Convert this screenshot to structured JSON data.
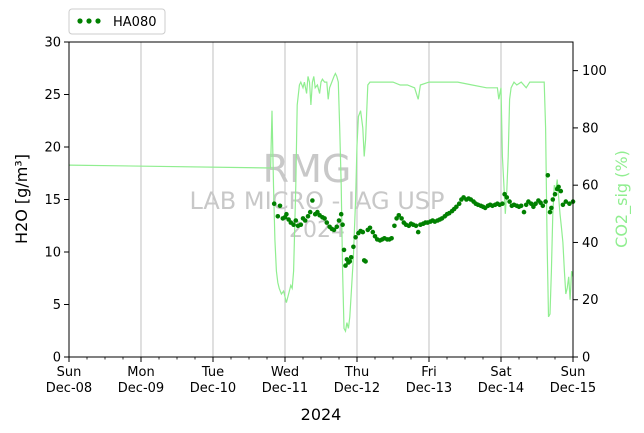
{
  "chart_data": {
    "type": "scatter",
    "title": "",
    "xlabel": "2024",
    "ylabel_left": "H2O [g/m³]",
    "ylabel_right": "CO2_sig (%)",
    "x_range": [
      "2024-12-08",
      "2024-12-15"
    ],
    "ylim_left": [
      0,
      30
    ],
    "ylim_right": [
      0,
      110
    ],
    "left_ticks": [
      0,
      5,
      10,
      15,
      20,
      25,
      30
    ],
    "right_ticks": [
      0,
      20,
      40,
      60,
      80,
      100
    ],
    "x_ticks": [
      {
        "day": 0,
        "line1": "Sun",
        "line2": "Dec-08"
      },
      {
        "day": 1,
        "line1": "Mon",
        "line2": "Dec-09"
      },
      {
        "day": 2,
        "line1": "Tue",
        "line2": "Dec-10"
      },
      {
        "day": 3,
        "line1": "Wed",
        "line2": "Dec-11"
      },
      {
        "day": 4,
        "line1": "Thu",
        "line2": "Dec-12"
      },
      {
        "day": 5,
        "line1": "Fri",
        "line2": "Dec-13"
      },
      {
        "day": 6,
        "line1": "Sat",
        "line2": "Dec-14"
      },
      {
        "day": 7,
        "line1": "Sun",
        "line2": "Dec-15"
      }
    ],
    "grid": "vertical",
    "legend": {
      "placement": "top-left-outside",
      "entries": [
        "HA080"
      ]
    },
    "watermark": [
      "RMG",
      "LAB MICRO - IAG USP",
      "2024"
    ],
    "colors": {
      "h2o": "#008000",
      "co2": "#90ee90",
      "grid": "#b0b0b0",
      "watermark": "#c8c8c8"
    },
    "series": [
      {
        "name": "HA080",
        "axis": "left",
        "style": "markers",
        "x_unit": "days since Dec-08",
        "points": [
          [
            2.85,
            14.6
          ],
          [
            2.9,
            13.4
          ],
          [
            2.93,
            14.4
          ],
          [
            2.97,
            13.2
          ],
          [
            3.0,
            13.3
          ],
          [
            3.02,
            13.6
          ],
          [
            3.05,
            13.1
          ],
          [
            3.08,
            12.8
          ],
          [
            3.12,
            12.6
          ],
          [
            3.15,
            13.0
          ],
          [
            3.18,
            12.5
          ],
          [
            3.22,
            12.6
          ],
          [
            3.25,
            13.2
          ],
          [
            3.28,
            13.0
          ],
          [
            3.32,
            13.4
          ],
          [
            3.35,
            13.8
          ],
          [
            3.38,
            14.9
          ],
          [
            3.42,
            13.6
          ],
          [
            3.45,
            13.8
          ],
          [
            3.48,
            13.5
          ],
          [
            3.52,
            13.3
          ],
          [
            3.55,
            13.2
          ],
          [
            3.58,
            12.8
          ],
          [
            3.62,
            12.4
          ],
          [
            3.65,
            12.2
          ],
          [
            3.68,
            12.1
          ],
          [
            3.72,
            12.4
          ],
          [
            3.75,
            13.0
          ],
          [
            3.78,
            13.6
          ],
          [
            3.8,
            12.6
          ],
          [
            3.82,
            10.2
          ],
          [
            3.84,
            8.7
          ],
          [
            3.86,
            9.3
          ],
          [
            3.88,
            9.0
          ],
          [
            3.9,
            9.1
          ],
          [
            3.92,
            9.5
          ],
          [
            3.95,
            10.5
          ],
          [
            3.98,
            11.4
          ],
          [
            4.02,
            11.8
          ],
          [
            4.05,
            12.0
          ],
          [
            4.08,
            11.9
          ],
          [
            4.1,
            9.2
          ],
          [
            4.12,
            9.1
          ],
          [
            4.15,
            12.1
          ],
          [
            4.18,
            12.3
          ],
          [
            4.22,
            11.9
          ],
          [
            4.25,
            11.5
          ],
          [
            4.28,
            11.2
          ],
          [
            4.32,
            11.1
          ],
          [
            4.35,
            11.2
          ],
          [
            4.38,
            11.3
          ],
          [
            4.42,
            11.2
          ],
          [
            4.45,
            11.2
          ],
          [
            4.48,
            11.3
          ],
          [
            4.52,
            12.5
          ],
          [
            4.55,
            13.2
          ],
          [
            4.58,
            13.5
          ],
          [
            4.62,
            13.2
          ],
          [
            4.65,
            12.8
          ],
          [
            4.68,
            12.6
          ],
          [
            4.72,
            12.5
          ],
          [
            4.75,
            12.7
          ],
          [
            4.78,
            12.6
          ],
          [
            4.82,
            12.5
          ],
          [
            4.85,
            11.9
          ],
          [
            4.88,
            12.6
          ],
          [
            4.92,
            12.7
          ],
          [
            4.95,
            12.8
          ],
          [
            4.98,
            12.8
          ],
          [
            5.02,
            12.9
          ],
          [
            5.05,
            13.0
          ],
          [
            5.08,
            12.9
          ],
          [
            5.12,
            13.0
          ],
          [
            5.15,
            13.1
          ],
          [
            5.18,
            13.2
          ],
          [
            5.22,
            13.4
          ],
          [
            5.25,
            13.6
          ],
          [
            5.28,
            13.7
          ],
          [
            5.32,
            13.9
          ],
          [
            5.35,
            14.1
          ],
          [
            5.38,
            14.3
          ],
          [
            5.42,
            14.6
          ],
          [
            5.45,
            15.0
          ],
          [
            5.48,
            15.2
          ],
          [
            5.52,
            15.0
          ],
          [
            5.55,
            15.1
          ],
          [
            5.58,
            15.0
          ],
          [
            5.62,
            14.8
          ],
          [
            5.65,
            14.6
          ],
          [
            5.68,
            14.5
          ],
          [
            5.72,
            14.4
          ],
          [
            5.75,
            14.3
          ],
          [
            5.78,
            14.2
          ],
          [
            5.82,
            14.4
          ],
          [
            5.85,
            14.5
          ],
          [
            5.88,
            14.4
          ],
          [
            5.92,
            14.5
          ],
          [
            5.95,
            14.6
          ],
          [
            5.98,
            14.5
          ],
          [
            6.02,
            14.6
          ],
          [
            6.05,
            15.5
          ],
          [
            6.08,
            15.2
          ],
          [
            6.12,
            14.8
          ],
          [
            6.15,
            14.4
          ],
          [
            6.18,
            14.5
          ],
          [
            6.22,
            14.4
          ],
          [
            6.25,
            14.3
          ],
          [
            6.28,
            14.4
          ],
          [
            6.32,
            13.8
          ],
          [
            6.35,
            14.5
          ],
          [
            6.38,
            14.8
          ],
          [
            6.42,
            14.6
          ],
          [
            6.45,
            14.3
          ],
          [
            6.48,
            14.6
          ],
          [
            6.52,
            14.9
          ],
          [
            6.55,
            14.7
          ],
          [
            6.58,
            14.4
          ],
          [
            6.62,
            14.8
          ],
          [
            6.65,
            17.3
          ],
          [
            6.68,
            13.8
          ],
          [
            6.7,
            14.2
          ],
          [
            6.72,
            15.0
          ],
          [
            6.75,
            15.5
          ],
          [
            6.78,
            16.0
          ],
          [
            6.8,
            16.2
          ],
          [
            6.83,
            15.8
          ],
          [
            6.86,
            14.5
          ],
          [
            6.9,
            14.8
          ],
          [
            6.95,
            14.6
          ],
          [
            7.0,
            14.8
          ]
        ]
      },
      {
        "name": "CO2_sig",
        "axis": "right",
        "style": "line",
        "x_unit": "days since Dec-08",
        "points": [
          [
            0,
            67
          ],
          [
            2.8,
            66
          ],
          [
            2.82,
            86
          ],
          [
            2.84,
            60
          ],
          [
            2.86,
            41
          ],
          [
            2.88,
            30
          ],
          [
            2.9,
            26
          ],
          [
            2.92,
            24
          ],
          [
            2.95,
            22
          ],
          [
            2.98,
            23
          ],
          [
            3.0,
            21
          ],
          [
            3.02,
            19
          ],
          [
            3.05,
            22
          ],
          [
            3.08,
            25
          ],
          [
            3.1,
            24
          ],
          [
            3.12,
            30
          ],
          [
            3.15,
            60
          ],
          [
            3.17,
            88
          ],
          [
            3.2,
            95
          ],
          [
            3.22,
            96
          ],
          [
            3.25,
            94
          ],
          [
            3.27,
            96
          ],
          [
            3.3,
            92
          ],
          [
            3.32,
            98
          ],
          [
            3.34,
            96
          ],
          [
            3.36,
            88
          ],
          [
            3.38,
            96
          ],
          [
            3.4,
            98
          ],
          [
            3.42,
            94
          ],
          [
            3.45,
            95
          ],
          [
            3.48,
            92
          ],
          [
            3.5,
            96
          ],
          [
            3.52,
            97
          ],
          [
            3.55,
            96
          ],
          [
            3.58,
            96
          ],
          [
            3.6,
            90
          ],
          [
            3.62,
            94
          ],
          [
            3.65,
            96
          ],
          [
            3.68,
            98
          ],
          [
            3.7,
            99
          ],
          [
            3.72,
            98
          ],
          [
            3.74,
            96
          ],
          [
            3.76,
            80
          ],
          [
            3.78,
            60
          ],
          [
            3.8,
            30
          ],
          [
            3.82,
            10
          ],
          [
            3.84,
            9
          ],
          [
            3.86,
            12
          ],
          [
            3.88,
            10
          ],
          [
            3.9,
            14
          ],
          [
            3.92,
            22
          ],
          [
            3.95,
            35
          ],
          [
            3.98,
            55
          ],
          [
            4.0,
            74
          ],
          [
            4.02,
            84
          ],
          [
            4.05,
            86
          ],
          [
            4.08,
            80
          ],
          [
            4.1,
            70
          ],
          [
            4.12,
            76
          ],
          [
            4.15,
            95
          ],
          [
            4.18,
            96
          ],
          [
            4.3,
            96
          ],
          [
            4.5,
            96
          ],
          [
            4.6,
            95
          ],
          [
            4.7,
            95
          ],
          [
            4.8,
            94
          ],
          [
            4.85,
            90
          ],
          [
            4.88,
            95
          ],
          [
            5.0,
            96
          ],
          [
            5.2,
            96
          ],
          [
            5.4,
            96
          ],
          [
            5.6,
            95
          ],
          [
            5.8,
            94
          ],
          [
            5.95,
            94
          ],
          [
            5.97,
            90
          ],
          [
            6.0,
            94
          ],
          [
            6.02,
            70
          ],
          [
            6.04,
            60
          ],
          [
            6.06,
            50
          ],
          [
            6.08,
            58
          ],
          [
            6.1,
            70
          ],
          [
            6.12,
            90
          ],
          [
            6.14,
            94
          ],
          [
            6.18,
            96
          ],
          [
            6.22,
            95
          ],
          [
            6.28,
            96
          ],
          [
            6.35,
            94
          ],
          [
            6.4,
            96
          ],
          [
            6.5,
            96
          ],
          [
            6.6,
            96
          ],
          [
            6.62,
            80
          ],
          [
            6.64,
            40
          ],
          [
            6.66,
            14
          ],
          [
            6.68,
            15
          ],
          [
            6.7,
            30
          ],
          [
            6.72,
            50
          ],
          [
            6.74,
            60
          ],
          [
            6.76,
            58
          ],
          [
            6.78,
            62
          ],
          [
            6.8,
            56
          ],
          [
            6.82,
            50
          ],
          [
            6.84,
            45
          ],
          [
            6.86,
            40
          ],
          [
            6.88,
            30
          ],
          [
            6.9,
            22
          ],
          [
            6.92,
            24
          ],
          [
            6.94,
            28
          ],
          [
            6.96,
            20
          ],
          [
            6.98,
            30
          ],
          [
            7.0,
            28
          ]
        ]
      }
    ]
  }
}
